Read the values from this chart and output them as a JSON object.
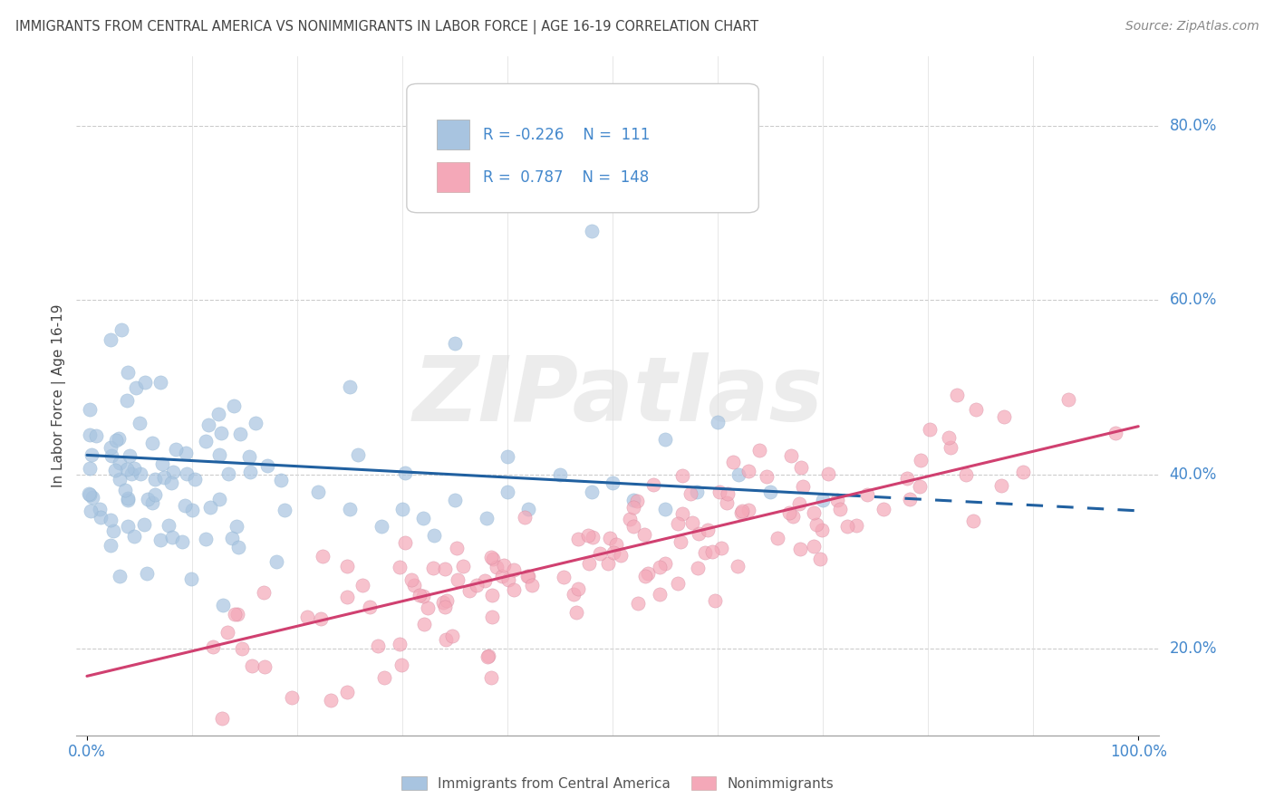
{
  "title": "IMMIGRANTS FROM CENTRAL AMERICA VS NONIMMIGRANTS IN LABOR FORCE | AGE 16-19 CORRELATION CHART",
  "source": "Source: ZipAtlas.com",
  "ylabel": "In Labor Force | Age 16-19",
  "legend_labels": [
    "Immigrants from Central America",
    "Nonimmigrants"
  ],
  "blue_R": -0.226,
  "blue_N": 111,
  "pink_R": 0.787,
  "pink_N": 148,
  "blue_color": "#a8c4e0",
  "pink_color": "#f4a8b8",
  "blue_line_color": "#2060a0",
  "pink_line_color": "#d04070",
  "watermark": "ZIPatlas",
  "xlim": [
    -0.01,
    1.02
  ],
  "ylim": [
    0.1,
    0.88
  ],
  "yticks": [
    0.2,
    0.4,
    0.6,
    0.8
  ],
  "ytick_labels": [
    "20.0%",
    "40.0%",
    "60.0%",
    "80.0%"
  ],
  "xtick_labels": [
    "0.0%",
    "100.0%"
  ],
  "tick_color": "#4488cc",
  "title_color": "#444444",
  "source_color": "#888888",
  "ylabel_color": "#444444"
}
